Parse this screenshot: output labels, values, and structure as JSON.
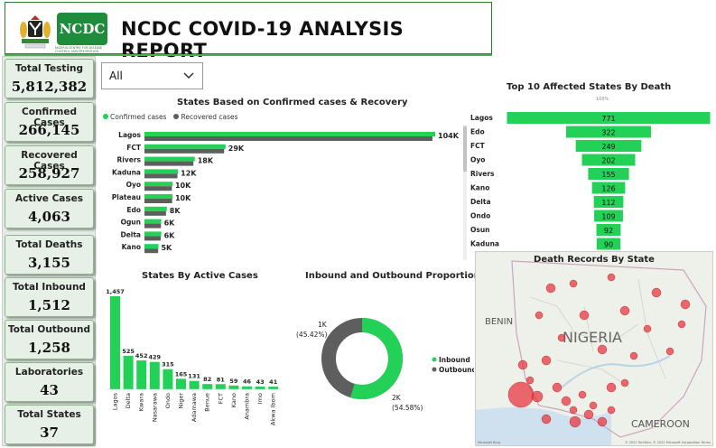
{
  "header": {
    "title": "NCDC COVID-19 ANALYSIS REPORT",
    "logo_text": "NCDC",
    "logo_subtext": "NIGERIA CENTRE FOR DISEASE CONTROL AND PREVENTION"
  },
  "kpis": [
    {
      "label": "Total Testing",
      "value": "5,812,382"
    },
    {
      "label": "Confirmed Cases",
      "value": "266,145"
    },
    {
      "label": "Recovered Cases",
      "value": "258,927"
    },
    {
      "label": "Active Cases",
      "value": "4,063"
    },
    {
      "label": "Total Deaths",
      "value": "3,155"
    },
    {
      "label": "Total Inbound",
      "value": "1,512"
    },
    {
      "label": "Total Outbound",
      "value": "1,258"
    },
    {
      "label": "Laboratories",
      "value": "43"
    },
    {
      "label": "Total States",
      "value": "37"
    }
  ],
  "slicer": {
    "value": "All"
  },
  "colors": {
    "green": "#22d156",
    "gray": "#5e5e5e",
    "map_dot": "#e8323c"
  },
  "confirmed_chart": {
    "title": "States Based on Confirmed cases & Recovery",
    "legend": [
      "Confirmed cases",
      "Recovered cases"
    ]
  },
  "death_chart": {
    "title": "Top 10 Affected States By Death",
    "top_label": "100%"
  },
  "active_chart": {
    "title": "States By Active Cases"
  },
  "donut_chart": {
    "title": "Inbound and Outbound Proportion",
    "legend": [
      "Inbound",
      "Outbound"
    ],
    "label_out": "1K",
    "label_out_pct": "(45.42%)",
    "label_in": "2K",
    "label_in_pct": "(54.58%)"
  },
  "map": {
    "title": "Death Records By State",
    "labels": {
      "benin": "BENIN",
      "nigeria": "NIGERIA",
      "cameroon": "CAMEROON"
    },
    "footer": "© 2022 TomTom, © 2022 Microsoft Corporation Terms",
    "bing": "Microsoft Bing"
  },
  "chart_data": [
    {
      "type": "bar",
      "title": "States Based on Confirmed cases & Recovery",
      "orientation": "horizontal",
      "categories": [
        "Lagos",
        "FCT",
        "Rivers",
        "Kaduna",
        "Oyo",
        "Plateau",
        "Edo",
        "Ogun",
        "Delta",
        "Kano"
      ],
      "series": [
        {
          "name": "Confirmed cases",
          "values": [
            104000,
            29000,
            18000,
            12000,
            10000,
            10000,
            8000,
            6000,
            6000,
            5000
          ]
        },
        {
          "name": "Recovered cases",
          "values": [
            103000,
            28500,
            17500,
            11800,
            9800,
            9900,
            7700,
            5900,
            5800,
            4900
          ]
        }
      ],
      "data_labels": [
        "104K",
        "29K",
        "18K",
        "12K",
        "10K",
        "10K",
        "8K",
        "6K",
        "6K",
        "5K"
      ],
      "legend": "top-left"
    },
    {
      "type": "bar",
      "title": "Top 10 Affected States By Death",
      "orientation": "funnel",
      "categories": [
        "Lagos",
        "Edo",
        "FCT",
        "Oyo",
        "Rivers",
        "Kano",
        "Delta",
        "Ondo",
        "Osun",
        "Kaduna"
      ],
      "values": [
        771,
        322,
        249,
        202,
        155,
        126,
        112,
        109,
        92,
        90
      ]
    },
    {
      "type": "bar",
      "title": "States By Active Cases",
      "categories": [
        "Lagos",
        "Delta",
        "Kwara",
        "Nasarawa",
        "Ondo",
        "Niger",
        "Adamawa",
        "Benue",
        "FCT",
        "Kano",
        "Anambra",
        "Imo",
        "Akwa Ibom"
      ],
      "values": [
        1457,
        525,
        452,
        429,
        315,
        165,
        131,
        82,
        81,
        59,
        46,
        43,
        41
      ],
      "data_labels": [
        "1,457",
        "525",
        "452",
        "429",
        "315",
        "165",
        "131",
        "82",
        "81",
        "59",
        "46",
        "43",
        "41"
      ]
    },
    {
      "type": "pie",
      "title": "Inbound and Outbound Proportion",
      "categories": [
        "Inbound",
        "Outbound"
      ],
      "values": [
        1512,
        1258
      ],
      "percent": [
        54.58,
        45.42
      ],
      "legend": "right"
    }
  ]
}
